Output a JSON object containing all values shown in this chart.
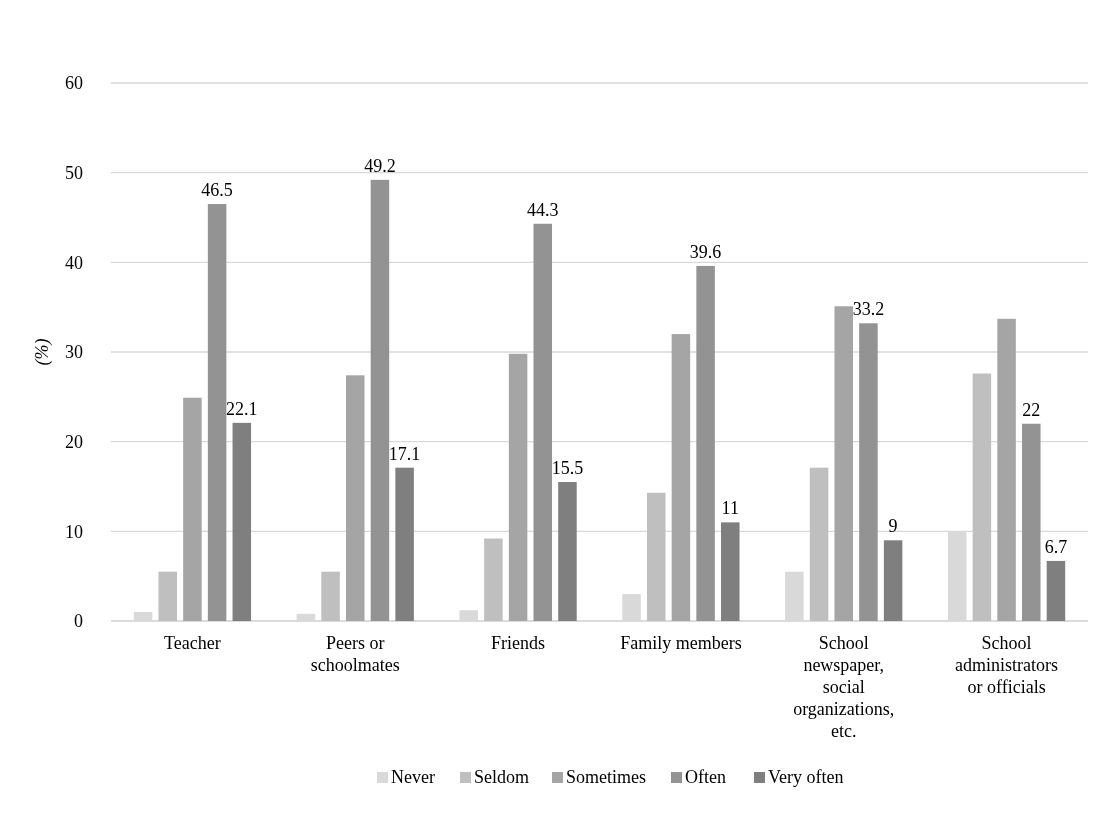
{
  "chart_data": {
    "type": "bar",
    "ylabel": "(%)",
    "categories": [
      "Teacher",
      "Peers or schoolmates",
      "Friends",
      "Family members",
      "School newspaper, social organizations, etc.",
      "School administrators or officials"
    ],
    "series": [
      {
        "name": "Never",
        "color": "#d9d9d9",
        "values": [
          1.0,
          0.8,
          1.2,
          3.0,
          5.5,
          10.0
        ]
      },
      {
        "name": "Seldom",
        "color": "#bfbfbf",
        "values": [
          5.5,
          5.5,
          9.2,
          14.3,
          17.1,
          27.6
        ]
      },
      {
        "name": "Sometimes",
        "color": "#a5a5a5",
        "values": [
          24.9,
          27.4,
          29.8,
          32.0,
          35.1,
          33.7
        ]
      },
      {
        "name": "Often",
        "color": "#939393",
        "values": [
          46.5,
          49.2,
          44.3,
          39.6,
          33.2,
          22
        ],
        "value_labels": [
          "46.5",
          "49.2",
          "44.3",
          "39.6",
          "33.2",
          "22"
        ]
      },
      {
        "name": "Very often",
        "color": "#7f7f7f",
        "values": [
          22.1,
          17.1,
          15.5,
          11,
          9,
          6.7
        ],
        "value_labels": [
          "22.1",
          "17.1",
          "15.5",
          "11",
          "9",
          "6.7"
        ]
      }
    ],
    "ylim": [
      0,
      60
    ],
    "yticks": [
      0,
      10,
      20,
      30,
      40,
      50,
      60
    ],
    "grid": "y",
    "legend": "bottom"
  }
}
